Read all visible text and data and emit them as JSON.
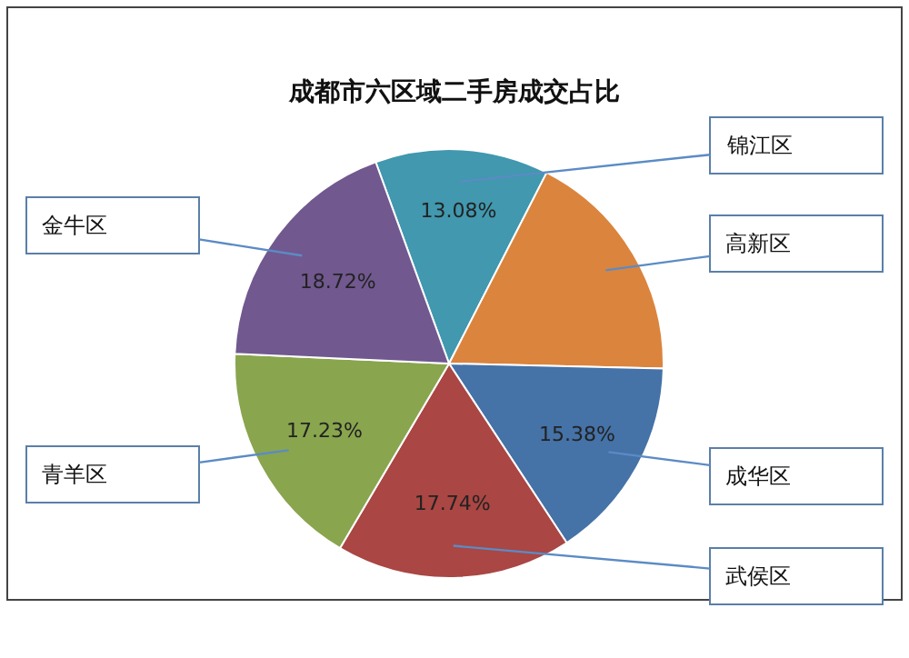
{
  "chart_data": {
    "type": "pie",
    "title": "成都市六区域二手房成交占比",
    "categories": [
      "锦江区",
      "高新区",
      "成华区",
      "武侯区",
      "青羊区",
      "金牛区"
    ],
    "values": [
      13.08,
      17.85,
      15.38,
      17.74,
      17.23,
      18.72
    ],
    "colors": [
      "#4198af",
      "#db843d",
      "#4572a7",
      "#aa4643",
      "#89a54e",
      "#71588f"
    ],
    "value_labels": [
      "13.08%",
      null,
      "15.38%",
      "17.74%",
      "17.23%",
      "18.72%"
    ],
    "legend": false
  }
}
